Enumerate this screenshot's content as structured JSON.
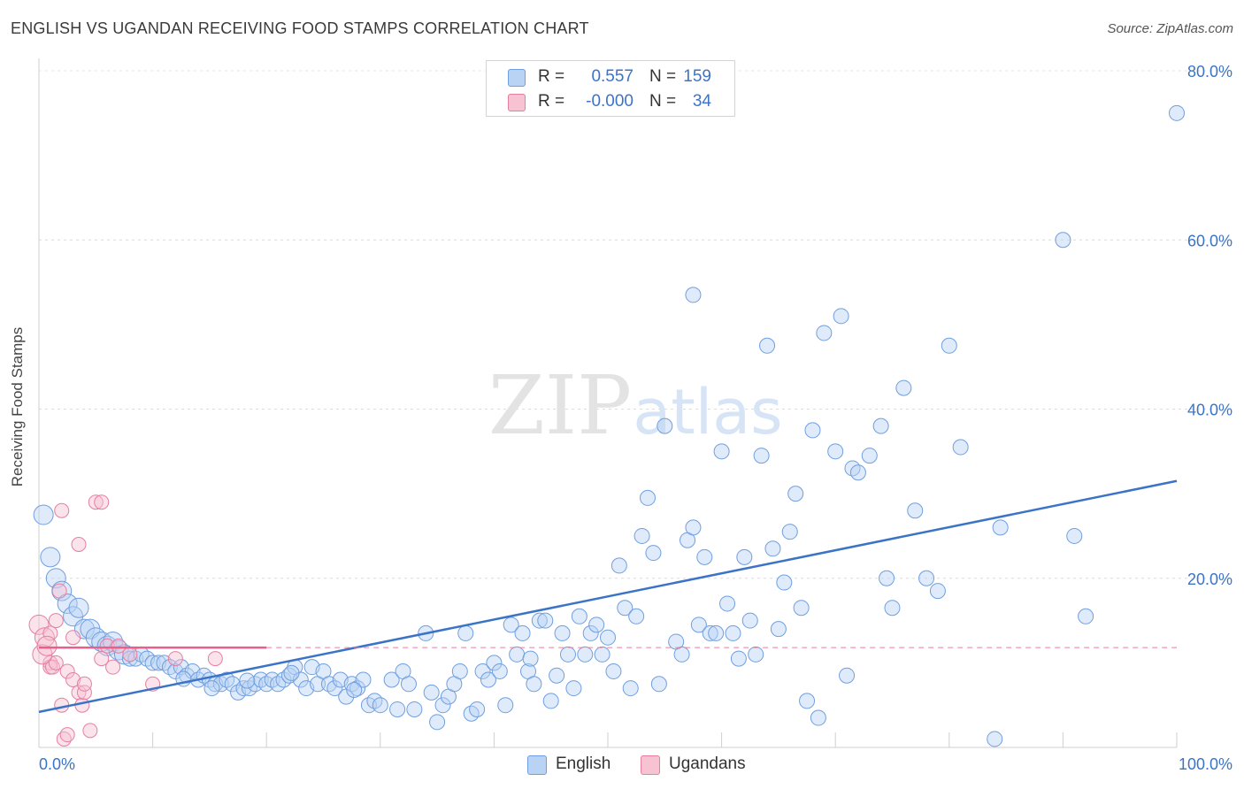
{
  "title": "ENGLISH VS UGANDAN RECEIVING FOOD STAMPS CORRELATION CHART",
  "source": "Source: ZipAtlas.com",
  "watermark": {
    "zip": "ZIP",
    "atlas": "atlas"
  },
  "legend_top": [
    {
      "series": "English",
      "r_label": "R =",
      "r_value": "0.557",
      "n_label": "N =",
      "n_value": "159",
      "color": "#6f9fe0",
      "fill": "#b9d3f5"
    },
    {
      "series": "Ugandans",
      "r_label": "R =",
      "r_value": "-0.000",
      "n_label": "N =",
      "n_value": "34",
      "color": "#e67fa0",
      "fill": "#f7c2d2"
    }
  ],
  "legend_bottom": [
    {
      "label": "English",
      "fill": "#b9d3f5",
      "stroke": "#6f9fe0"
    },
    {
      "label": "Ugandans",
      "fill": "#f7c2d2",
      "stroke": "#e67fa0"
    }
  ],
  "chart_data": {
    "type": "scatter",
    "title": "ENGLISH VS UGANDAN RECEIVING FOOD STAMPS CORRELATION CHART",
    "xlabel": "",
    "ylabel": "Receiving Food Stamps",
    "xlim": [
      0,
      100
    ],
    "ylim": [
      0,
      80
    ],
    "x_tick_labels": [
      "0.0%",
      "100.0%"
    ],
    "y_ticks": [
      20,
      40,
      60,
      80
    ],
    "y_tick_labels": [
      "20.0%",
      "40.0%",
      "60.0%",
      "80.0%"
    ],
    "grid": true,
    "colors": {
      "english": "#3b74c7",
      "english_fill": "#b9d3f5",
      "english_edge": "#6f9fe0",
      "ugandans": "#e8608a",
      "ugandans_fill": "#f7c2d2",
      "ugandans_edge": "#e67fa0",
      "axis_text": "#3b74c7"
    },
    "series": [
      {
        "name": "English",
        "trend": {
          "x": [
            0,
            100
          ],
          "y": [
            4.2,
            31.5
          ]
        },
        "points": [
          [
            0.4,
            27.5
          ],
          [
            1,
            22.5
          ],
          [
            1.5,
            20
          ],
          [
            2,
            18.5
          ],
          [
            2.5,
            17
          ],
          [
            3,
            15.5
          ],
          [
            3.5,
            16.5
          ],
          [
            4,
            14
          ],
          [
            4.5,
            14
          ],
          [
            5,
            13
          ],
          [
            5.5,
            12.5
          ],
          [
            6,
            12
          ],
          [
            6.5,
            12.5
          ],
          [
            7,
            11.5
          ],
          [
            7.5,
            11
          ],
          [
            8,
            10.5
          ],
          [
            8.5,
            10.5
          ],
          [
            9,
            11
          ],
          [
            9.5,
            10.5
          ],
          [
            10,
            10
          ],
          [
            10.5,
            10
          ],
          [
            11,
            10
          ],
          [
            11.5,
            9.5
          ],
          [
            12,
            9
          ],
          [
            12.5,
            9.5
          ],
          [
            13,
            8.5
          ],
          [
            13.5,
            9
          ],
          [
            14,
            8
          ],
          [
            14.5,
            8.5
          ],
          [
            15,
            8
          ],
          [
            15.5,
            7.5
          ],
          [
            16,
            7.5
          ],
          [
            16.5,
            8
          ],
          [
            17,
            7.5
          ],
          [
            17.5,
            6.5
          ],
          [
            18,
            7
          ],
          [
            18.5,
            7
          ],
          [
            19,
            7.5
          ],
          [
            19.5,
            8
          ],
          [
            20,
            7.5
          ],
          [
            20.5,
            8
          ],
          [
            21,
            7.5
          ],
          [
            21.5,
            8
          ],
          [
            22,
            8.5
          ],
          [
            22.5,
            9.5
          ],
          [
            23,
            8
          ],
          [
            23.5,
            7
          ],
          [
            24,
            9.5
          ],
          [
            24.5,
            7.5
          ],
          [
            25,
            9
          ],
          [
            25.5,
            7.5
          ],
          [
            26,
            7
          ],
          [
            26.5,
            8
          ],
          [
            27,
            6
          ],
          [
            27.5,
            7.5
          ],
          [
            28,
            7
          ],
          [
            28.5,
            8
          ],
          [
            29,
            5
          ],
          [
            29.5,
            5.5
          ],
          [
            30,
            5
          ],
          [
            31,
            8
          ],
          [
            31.5,
            4.5
          ],
          [
            32,
            9
          ],
          [
            32.5,
            7.5
          ],
          [
            33,
            4.5
          ],
          [
            34,
            13.5
          ],
          [
            34.5,
            6.5
          ],
          [
            35,
            3
          ],
          [
            35.5,
            5
          ],
          [
            36,
            6
          ],
          [
            36.5,
            7.5
          ],
          [
            37,
            9
          ],
          [
            37.5,
            13.5
          ],
          [
            38,
            4
          ],
          [
            38.5,
            4.5
          ],
          [
            39,
            9
          ],
          [
            39.5,
            8
          ],
          [
            40,
            10
          ],
          [
            40.5,
            9
          ],
          [
            41,
            5
          ],
          [
            41.5,
            14.5
          ],
          [
            42,
            11
          ],
          [
            42.5,
            13.5
          ],
          [
            43,
            9
          ],
          [
            43.5,
            7.5
          ],
          [
            44,
            15
          ],
          [
            44.5,
            15
          ],
          [
            45,
            5.5
          ],
          [
            45.5,
            8.5
          ],
          [
            46,
            13.5
          ],
          [
            46.5,
            11
          ],
          [
            47,
            7
          ],
          [
            47.5,
            15.5
          ],
          [
            48,
            11
          ],
          [
            48.5,
            13.5
          ],
          [
            49,
            14.5
          ],
          [
            49.5,
            11
          ],
          [
            50,
            13
          ],
          [
            50.5,
            9
          ],
          [
            51,
            21.5
          ],
          [
            51.5,
            16.5
          ],
          [
            52,
            7
          ],
          [
            52.5,
            15.5
          ],
          [
            53,
            25
          ],
          [
            53.5,
            29.5
          ],
          [
            54,
            23
          ],
          [
            54.5,
            7.5
          ],
          [
            55,
            38
          ],
          [
            56,
            12.5
          ],
          [
            56.5,
            11
          ],
          [
            57,
            24.5
          ],
          [
            57.5,
            26
          ],
          [
            58,
            14.5
          ],
          [
            58.5,
            22.5
          ],
          [
            59,
            13.5
          ],
          [
            59.5,
            13.5
          ],
          [
            60,
            35
          ],
          [
            60.5,
            17
          ],
          [
            61,
            13.5
          ],
          [
            61.5,
            10.5
          ],
          [
            62,
            22.5
          ],
          [
            62.5,
            15
          ],
          [
            63,
            11
          ],
          [
            63.5,
            34.5
          ],
          [
            64,
            47.5
          ],
          [
            64.5,
            23.5
          ],
          [
            65,
            14
          ],
          [
            65.5,
            19.5
          ],
          [
            66,
            25.5
          ],
          [
            66.5,
            30
          ],
          [
            67,
            16.5
          ],
          [
            67.5,
            5.5
          ],
          [
            68,
            37.5
          ],
          [
            68.5,
            3.5
          ],
          [
            69,
            49
          ],
          [
            70,
            35
          ],
          [
            70.5,
            51
          ],
          [
            71,
            8.5
          ],
          [
            71.5,
            33
          ],
          [
            72,
            32.5
          ],
          [
            73,
            34.5
          ],
          [
            74,
            38
          ],
          [
            74.5,
            20
          ],
          [
            75,
            16.5
          ],
          [
            76,
            42.5
          ],
          [
            77,
            28
          ],
          [
            78,
            20
          ],
          [
            79,
            18.5
          ],
          [
            80,
            47.5
          ],
          [
            81,
            35.5
          ],
          [
            84,
            1
          ],
          [
            84.5,
            26
          ],
          [
            90,
            60
          ],
          [
            91,
            25
          ],
          [
            92,
            15.5
          ],
          [
            100,
            75
          ],
          [
            57.5,
            53.5
          ],
          [
            15.2,
            7
          ],
          [
            22.2,
            8.8
          ],
          [
            27.7,
            6.8
          ],
          [
            43.2,
            10.5
          ],
          [
            12.7,
            8.1
          ],
          [
            18.3,
            7.9
          ]
        ]
      },
      {
        "name": "Ugandans",
        "trend": {
          "x": [
            0,
            20
          ],
          "y": [
            11.8,
            11.8
          ]
        },
        "trend_dashed_to": 100,
        "points": [
          [
            0,
            14.5
          ],
          [
            0.5,
            13
          ],
          [
            1,
            13.5
          ],
          [
            1,
            10
          ],
          [
            1,
            9.5
          ],
          [
            1.2,
            9.5
          ],
          [
            1.5,
            10
          ],
          [
            1.5,
            15
          ],
          [
            1.8,
            18.5
          ],
          [
            2,
            28
          ],
          [
            2,
            5
          ],
          [
            2.2,
            1
          ],
          [
            2.5,
            1.5
          ],
          [
            2.5,
            9
          ],
          [
            3,
            8
          ],
          [
            3,
            13
          ],
          [
            3.5,
            6.5
          ],
          [
            3.5,
            24
          ],
          [
            3.8,
            5
          ],
          [
            4,
            6.5
          ],
          [
            4,
            7.5
          ],
          [
            4.5,
            2
          ],
          [
            5,
            29
          ],
          [
            5.5,
            29
          ],
          [
            5.5,
            10.5
          ],
          [
            6,
            12
          ],
          [
            6.5,
            9.5
          ],
          [
            7,
            12
          ],
          [
            8,
            11
          ],
          [
            10,
            7.5
          ],
          [
            12,
            10.5
          ],
          [
            15.5,
            10.5
          ],
          [
            0.3,
            11
          ],
          [
            0.7,
            12
          ]
        ]
      }
    ]
  }
}
